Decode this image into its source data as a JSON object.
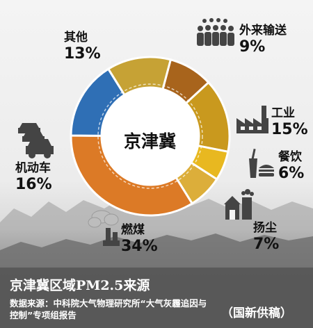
{
  "chart_data": {
    "type": "pie",
    "title": "京津冀区域PM2.5来源",
    "center_label": "京津冀",
    "slices": [
      {
        "name": "外来输送",
        "value": 9,
        "label": "9%",
        "color": "#a8641c"
      },
      {
        "name": "工业",
        "value": 15,
        "label": "15%",
        "color": "#c9991e"
      },
      {
        "name": "餐饮",
        "value": 6,
        "label": "6%",
        "color": "#e8b820"
      },
      {
        "name": "扬尘",
        "value": 7,
        "label": "7%",
        "color": "#dcae3a"
      },
      {
        "name": "燃煤",
        "value": 34,
        "label": "34%",
        "color": "#dc7a26"
      },
      {
        "name": "机动车",
        "value": 16,
        "label": "16%",
        "color": "#2f6fb5"
      },
      {
        "name": "其他",
        "value": 13,
        "label": "13%",
        "color": "#c6a235"
      }
    ]
  },
  "footer": {
    "source": "数据来源：中科院大气物理研究所“大气灰霾追因与控制”专项组报告",
    "credit": "（国新供稿）"
  },
  "icons": [
    "crowd-icon",
    "factory-icon",
    "food-icon",
    "dust-icon",
    "coal-smoke-icon",
    "cars-icon"
  ]
}
